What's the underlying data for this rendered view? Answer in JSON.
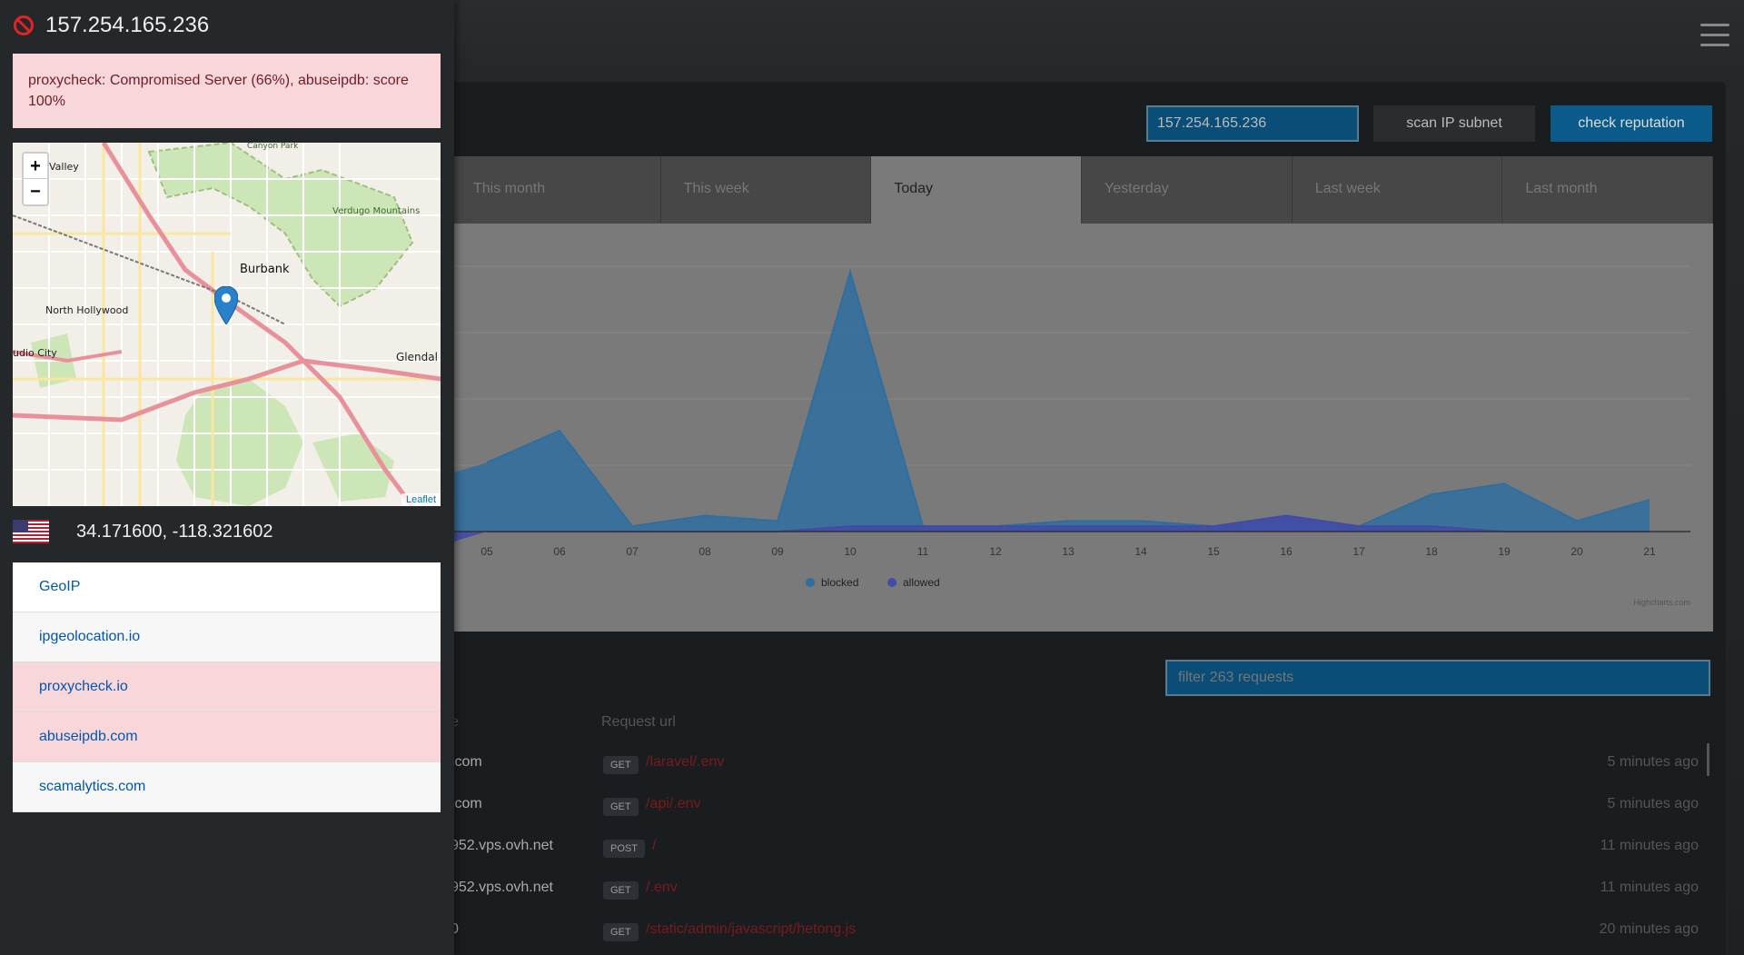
{
  "sidebar": {
    "ip": "157.254.165.236",
    "alert": "proxycheck: Compromised Server (66%), abuseipdb: score 100%",
    "coords": "34.171600, -118.321602",
    "map": {
      "attribution": "Leaflet",
      "zoom_in": "+",
      "zoom_out": "−",
      "labels": [
        "Valley",
        "Canyon Park",
        "Verdugo Mountains",
        "Burbank",
        "North Hollywood",
        "udio City",
        "Glendal"
      ]
    },
    "links": [
      {
        "label": "GeoIP",
        "status": "normal"
      },
      {
        "label": "ipgeolocation.io",
        "status": "normal"
      },
      {
        "label": "proxycheck.io",
        "status": "danger"
      },
      {
        "label": "abuseipdb.com",
        "status": "danger"
      },
      {
        "label": "scamalytics.com",
        "status": "normal"
      }
    ]
  },
  "toolbar": {
    "ip_value": "157.254.165.236",
    "scan_label": "scan IP subnet",
    "reputation_label": "check reputation"
  },
  "tabs": [
    {
      "label": "This month",
      "active": false
    },
    {
      "label": "This week",
      "active": false
    },
    {
      "label": "Today",
      "active": true
    },
    {
      "label": "Yesterday",
      "active": false
    },
    {
      "label": "Last week",
      "active": false
    },
    {
      "label": "Last month",
      "active": false
    }
  ],
  "chart_data": {
    "type": "area",
    "x": [
      "05",
      "06",
      "07",
      "08",
      "09",
      "10",
      "11",
      "12",
      "13",
      "14",
      "15",
      "16",
      "17",
      "18",
      "19",
      "20",
      "21"
    ],
    "series": [
      {
        "name": "blocked",
        "color": "#2f6f9f",
        "values": [
          13,
          19,
          1,
          3,
          2,
          49,
          1,
          1,
          2,
          2,
          1,
          3,
          1,
          7,
          9,
          2,
          6
        ]
      },
      {
        "name": "allowed",
        "color": "#434ba5",
        "values": [
          0,
          0,
          0,
          0,
          0,
          1,
          1,
          1,
          1,
          1,
          1,
          3,
          1,
          1,
          0,
          0,
          0
        ]
      }
    ],
    "credit": "Highcharts.com",
    "ylim": [
      0,
      50
    ],
    "grid": true,
    "legend": "bottom-center"
  },
  "requests": {
    "filter_placeholder": "filter 263 requests",
    "col_host": "e",
    "col_url": "Request url",
    "rows": [
      {
        "host": ".com",
        "method": "GET",
        "url": "/laravel/.env",
        "time": "5 minutes ago"
      },
      {
        "host": ".com",
        "method": "GET",
        "url": "/api/.env",
        "time": "5 minutes ago"
      },
      {
        "host": "952.vps.ovh.net",
        "method": "POST",
        "url": "/",
        "time": "11 minutes ago"
      },
      {
        "host": "952.vps.ovh.net",
        "method": "GET",
        "url": "/.env",
        "time": "11 minutes ago"
      },
      {
        "host": "0",
        "method": "GET",
        "url": "/static/admin/javascript/hetong.js",
        "time": "20 minutes ago"
      }
    ]
  }
}
